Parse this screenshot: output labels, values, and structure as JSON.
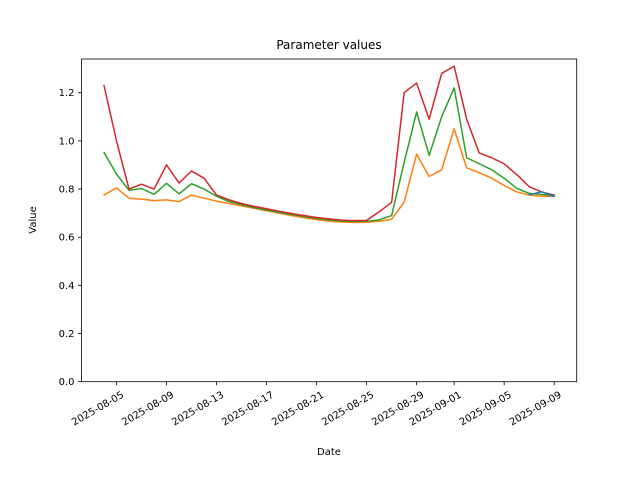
{
  "chart_data": {
    "type": "line",
    "title": "Parameter values",
    "xlabel": "Date",
    "ylabel": "Value",
    "grid": false,
    "legend": null,
    "background": "#ffffff",
    "frame_color": "#000000",
    "line_width": 1.5,
    "ylim": [
      0.0,
      1.34
    ],
    "xlim_days": [
      -1.8,
      37.8
    ],
    "yticks": [
      0.0,
      0.2,
      0.4,
      0.6,
      0.8,
      1.0,
      1.2
    ],
    "ytick_labels": [
      "0.0",
      "0.2",
      "0.4",
      "0.6",
      "0.8",
      "1.0",
      "1.2"
    ],
    "xticks": {
      "days": [
        1,
        5,
        9,
        13,
        17,
        21,
        25,
        28,
        32,
        36
      ],
      "labels": [
        "2025-08-05",
        "2025-08-09",
        "2025-08-13",
        "2025-08-17",
        "2025-08-21",
        "2025-08-25",
        "2025-08-29",
        "2025-09-01",
        "2025-09-05",
        "2025-09-09"
      ]
    },
    "dates": [
      "2025-08-04",
      "2025-08-05",
      "2025-08-06",
      "2025-08-07",
      "2025-08-08",
      "2025-08-09",
      "2025-08-10",
      "2025-08-11",
      "2025-08-12",
      "2025-08-13",
      "2025-08-14",
      "2025-08-15",
      "2025-08-16",
      "2025-08-17",
      "2025-08-18",
      "2025-08-19",
      "2025-08-20",
      "2025-08-21",
      "2025-08-22",
      "2025-08-23",
      "2025-08-24",
      "2025-08-25",
      "2025-08-26",
      "2025-08-27",
      "2025-08-28",
      "2025-08-29",
      "2025-08-30",
      "2025-08-31",
      "2025-09-01",
      "2025-09-02",
      "2025-09-03",
      "2025-09-04",
      "2025-09-05",
      "2025-09-06",
      "2025-09-07",
      "2025-09-08",
      "2025-09-09"
    ],
    "series": [
      {
        "name": "orange",
        "color": "#ff7f0e",
        "values": [
          0.775,
          0.805,
          0.762,
          0.758,
          0.752,
          0.755,
          0.748,
          0.775,
          0.762,
          0.75,
          0.74,
          0.73,
          0.72,
          0.71,
          0.7,
          0.69,
          0.681,
          0.673,
          0.667,
          0.663,
          0.661,
          0.662,
          0.666,
          0.675,
          0.745,
          0.945,
          0.852,
          0.88,
          1.05,
          0.888,
          0.868,
          0.845,
          0.815,
          0.788,
          0.775,
          0.77,
          0.77
        ]
      },
      {
        "name": "green",
        "color": "#2ca02c",
        "values": [
          0.952,
          0.862,
          0.795,
          0.802,
          0.778,
          0.824,
          0.78,
          0.822,
          0.8,
          0.77,
          0.748,
          0.735,
          0.723,
          0.713,
          0.703,
          0.694,
          0.686,
          0.678,
          0.672,
          0.667,
          0.665,
          0.666,
          0.672,
          0.69,
          0.91,
          1.12,
          0.94,
          1.1,
          1.22,
          0.93,
          0.905,
          0.88,
          0.845,
          0.803,
          0.782,
          0.778,
          0.772
        ]
      },
      {
        "name": "red",
        "color": "#d62728",
        "values": [
          1.23,
          1.0,
          0.8,
          0.82,
          0.8,
          0.9,
          0.825,
          0.875,
          0.845,
          0.775,
          0.755,
          0.74,
          0.728,
          0.718,
          0.708,
          0.698,
          0.69,
          0.682,
          0.676,
          0.671,
          0.669,
          0.67,
          0.705,
          0.745,
          1.2,
          1.24,
          1.09,
          1.28,
          1.31,
          1.09,
          0.95,
          0.93,
          0.905,
          0.86,
          0.81,
          0.788,
          0.775
        ]
      },
      {
        "name": "blue",
        "color": "#1f77b4",
        "days": [
          34,
          35,
          36
        ],
        "values": [
          0.776,
          0.789,
          0.77
        ]
      }
    ]
  }
}
